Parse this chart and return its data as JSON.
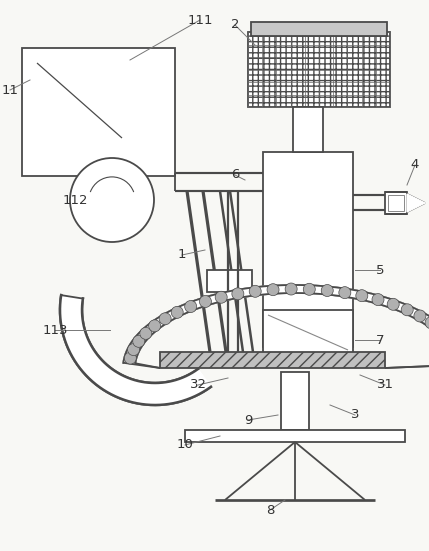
{
  "bg_color": "#f8f8f5",
  "line_color": "#4a4a4a",
  "label_color": "#333333",
  "fig_w": 4.29,
  "fig_h": 5.51,
  "dpi": 100
}
